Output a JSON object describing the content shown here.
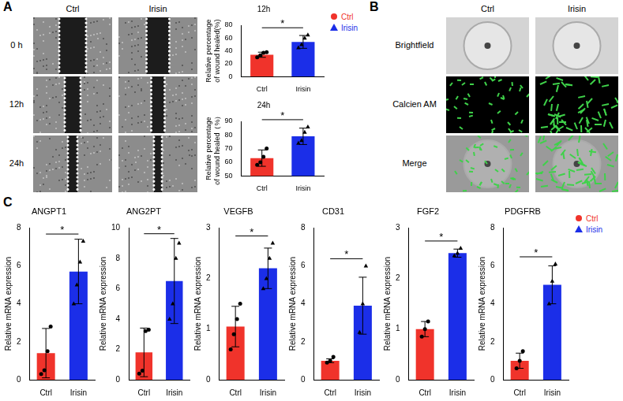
{
  "figure": {
    "panel_labels": [
      "A",
      "B",
      "C"
    ],
    "panel_a_images": {
      "columns": [
        "Ctrl",
        "Irisin"
      ],
      "rows": [
        "0 h",
        "12h",
        "24h"
      ]
    },
    "panel_b_images": {
      "columns": [
        "Ctrl",
        "Irisin"
      ],
      "rows": [
        "Brightfield",
        "Calcien AM",
        "Merge"
      ]
    }
  },
  "chart_data": [
    {
      "type": "bar",
      "title": "12h",
      "y_label": [
        "Relative percentage",
        "of wound healed(%)"
      ],
      "categories": [
        "Ctrl",
        "Irisin"
      ],
      "series": [
        {
          "name": "Ctrl",
          "color": "#f0332b",
          "marker": "circle",
          "values": [
            34,
            null
          ],
          "errors": [
            4,
            null
          ],
          "points": [
            [
              30,
              33,
              37,
              38
            ],
            null
          ]
        },
        {
          "name": "Irisin",
          "color": "#1b2ee8",
          "marker": "triangle",
          "values": [
            null,
            54
          ],
          "errors": [
            null,
            10
          ],
          "points": [
            null,
            [
              45,
              50,
              60,
              65
            ]
          ]
        }
      ],
      "ylim": [
        0,
        80
      ],
      "yticks": [
        0,
        20,
        40,
        60,
        80
      ],
      "annotation": "*",
      "legend": "right",
      "grid": false
    },
    {
      "type": "bar",
      "title": "24h",
      "y_label": [
        "Relative percentage",
        "of wound healed（%）"
      ],
      "categories": [
        "Ctrl",
        "Irisin"
      ],
      "series": [
        {
          "name": "Ctrl",
          "color": "#f0332b",
          "marker": "circle",
          "values": [
            63,
            null
          ],
          "errors": [
            6,
            null
          ],
          "points": [
            [
              58,
              60,
              64,
              70
            ],
            null
          ]
        },
        {
          "name": "Irisin",
          "color": "#1b2ee8",
          "marker": "triangle",
          "values": [
            null,
            79
          ],
          "errors": [
            null,
            6
          ],
          "points": [
            null,
            [
              74,
              76,
              82,
              86
            ]
          ]
        }
      ],
      "ylim": [
        50,
        90
      ],
      "yticks": [
        50,
        60,
        70,
        80,
        90
      ],
      "annotation": "*",
      "grid": false
    },
    {
      "type": "bar",
      "title": "ANGPT1",
      "y_label": [
        "Relative mRNA expression"
      ],
      "categories": [
        "Ctrl",
        "Irisin"
      ],
      "series": [
        {
          "name": "Ctrl",
          "color": "#f0332b",
          "marker": "circle",
          "values": [
            1.4,
            null
          ],
          "errors": [
            1.3,
            null
          ],
          "points": [
            [
              0.3,
              0.5,
              1.5,
              2.8
            ],
            null
          ]
        },
        {
          "name": "Irisin",
          "color": "#1b2ee8",
          "marker": "triangle",
          "values": [
            null,
            5.7
          ],
          "errors": [
            null,
            1.7
          ],
          "points": [
            null,
            [
              4,
              5,
              6.2,
              7.3
            ]
          ]
        }
      ],
      "ylim": [
        0,
        8
      ],
      "yticks": [
        0,
        2,
        4,
        6,
        8
      ],
      "annotation": "*",
      "grid": false
    },
    {
      "type": "bar",
      "title": "ANG2PT",
      "y_label": [
        "Relative mRNA expression"
      ],
      "categories": [
        "Ctrl",
        "Irisin"
      ],
      "series": [
        {
          "name": "Ctrl",
          "color": "#f0332b",
          "marker": "circle",
          "values": [
            1.8,
            null
          ],
          "errors": [
            1.6,
            null
          ],
          "points": [
            [
              0.4,
              0.6,
              3.2,
              3.3
            ],
            null
          ]
        },
        {
          "name": "Irisin",
          "color": "#1b2ee8",
          "marker": "triangle",
          "values": [
            null,
            6.5
          ],
          "errors": [
            null,
            2.8
          ],
          "points": [
            null,
            [
              4,
              5,
              8,
              9
            ]
          ]
        }
      ],
      "ylim": [
        0,
        10
      ],
      "yticks": [
        0,
        2,
        4,
        6,
        8,
        10
      ],
      "annotation": "*",
      "grid": false
    },
    {
      "type": "bar",
      "title": "VEGFB",
      "y_label": [
        "Relative mRNA expression"
      ],
      "categories": [
        "Ctrl",
        "Irisin"
      ],
      "series": [
        {
          "name": "Ctrl",
          "color": "#f0332b",
          "marker": "circle",
          "values": [
            1.05,
            null
          ],
          "errors": [
            0.4,
            null
          ],
          "points": [
            [
              0.6,
              0.9,
              1.2,
              1.5
            ],
            null
          ]
        },
        {
          "name": "Irisin",
          "color": "#1b2ee8",
          "marker": "triangle",
          "values": [
            null,
            2.2
          ],
          "errors": [
            null,
            0.4
          ],
          "points": [
            null,
            [
              1.8,
              2.0,
              2.4,
              2.7
            ]
          ]
        }
      ],
      "ylim": [
        0,
        3
      ],
      "yticks": [
        0,
        1,
        2,
        3
      ],
      "annotation": "*",
      "grid": false
    },
    {
      "type": "bar",
      "title": "CD31",
      "y_label": [
        "Relative mRNA expression"
      ],
      "categories": [
        "Ctrl",
        "Irisin"
      ],
      "series": [
        {
          "name": "Ctrl",
          "color": "#f0332b",
          "marker": "circle",
          "values": [
            1.0,
            null
          ],
          "errors": [
            0.1,
            null
          ],
          "points": [
            [
              0.9,
              1.0,
              1.2
            ],
            null
          ]
        },
        {
          "name": "Irisin",
          "color": "#1b2ee8",
          "marker": "triangle",
          "values": [
            null,
            3.9
          ],
          "errors": [
            null,
            1.5
          ],
          "points": [
            null,
            [
              2.5,
              4,
              6
            ]
          ]
        }
      ],
      "ylim": [
        0,
        8
      ],
      "yticks": [
        0,
        2,
        4,
        6,
        8
      ],
      "annotation": "*",
      "grid": false
    },
    {
      "type": "bar",
      "title": "FGF2",
      "y_label": [
        "Relative mRNA expression"
      ],
      "categories": [
        "Ctrl",
        "Irisin"
      ],
      "series": [
        {
          "name": "Ctrl",
          "color": "#f0332b",
          "marker": "circle",
          "values": [
            1.0,
            null
          ],
          "errors": [
            0.15,
            null
          ],
          "points": [
            [
              0.85,
              1.0,
              1.15
            ],
            null
          ]
        },
        {
          "name": "Irisin",
          "color": "#1b2ee8",
          "marker": "triangle",
          "values": [
            null,
            2.5
          ],
          "errors": [
            null,
            0.08
          ],
          "points": [
            null,
            [
              2.45,
              2.5,
              2.6
            ]
          ]
        }
      ],
      "ylim": [
        0,
        3
      ],
      "yticks": [
        0,
        1,
        2,
        3
      ],
      "annotation": "*",
      "grid": false
    },
    {
      "type": "bar",
      "title": "PDGFRB",
      "y_label": [
        "Relative mRNA expression"
      ],
      "categories": [
        "Ctrl",
        "Irisin"
      ],
      "series": [
        {
          "name": "Ctrl",
          "color": "#f0332b",
          "marker": "circle",
          "values": [
            1.0,
            null
          ],
          "errors": [
            0.4,
            null
          ],
          "points": [
            [
              0.6,
              1.0,
              1.5
            ],
            null
          ]
        },
        {
          "name": "Irisin",
          "color": "#1b2ee8",
          "marker": "triangle",
          "values": [
            null,
            5.0
          ],
          "errors": [
            null,
            1.0
          ],
          "points": [
            null,
            [
              4.0,
              5.2,
              6.1
            ]
          ]
        }
      ],
      "ylim": [
        0,
        8
      ],
      "yticks": [
        0,
        2,
        4,
        6,
        8
      ],
      "annotation": "*",
      "legend": "right",
      "grid": false
    }
  ]
}
